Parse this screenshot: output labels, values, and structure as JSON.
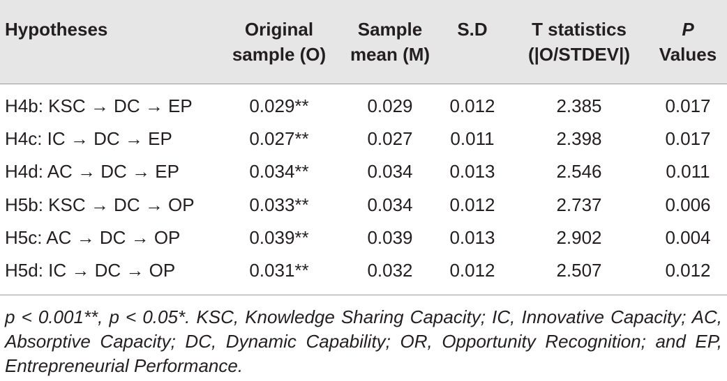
{
  "table": {
    "headers": {
      "hypotheses": "Hypotheses",
      "original_line1": "Original",
      "original_line2": "sample (O)",
      "mean_line1": "Sample",
      "mean_line2": "mean (M)",
      "sd": "S.D",
      "t_line1": "T statistics",
      "t_line2": "(|O/STDEV|)",
      "p_line1": "P",
      "p_line2": "Values"
    },
    "rows": [
      {
        "hypothesis": "H4b: KSC → DC → EP",
        "original": "0.029**",
        "mean": "0.029",
        "sd": "0.012",
        "t": "2.385",
        "p": "0.017"
      },
      {
        "hypothesis": "H4c: IC → DC → EP",
        "original": "0.027**",
        "mean": "0.027",
        "sd": "0.011",
        "t": "2.398",
        "p": "0.017"
      },
      {
        "hypothesis": "H4d: AC → DC → EP",
        "original": "0.034**",
        "mean": "0.034",
        "sd": "0.013",
        "t": "2.546",
        "p": "0.011"
      },
      {
        "hypothesis": "H5b: KSC → DC → OP",
        "original": "0.033**",
        "mean": "0.034",
        "sd": "0.012",
        "t": "2.737",
        "p": "0.006"
      },
      {
        "hypothesis": "H5c: AC → DC → OP",
        "original": "0.039**",
        "mean": "0.039",
        "sd": "0.013",
        "t": "2.902",
        "p": "0.004"
      },
      {
        "hypothesis": "H5d: IC → DC → OP",
        "original": "0.031**",
        "mean": "0.032",
        "sd": "0.012",
        "t": "2.507",
        "p": "0.012"
      }
    ],
    "footnote": "p < 0.001**, p < 0.05*. KSC, Knowledge Sharing Capacity; IC, Innovative Capacity; AC, Absorptive Capacity; DC, Dynamic Capability; OR, Opportunity Recognition; and EP, Entrepreneurial Performance."
  }
}
